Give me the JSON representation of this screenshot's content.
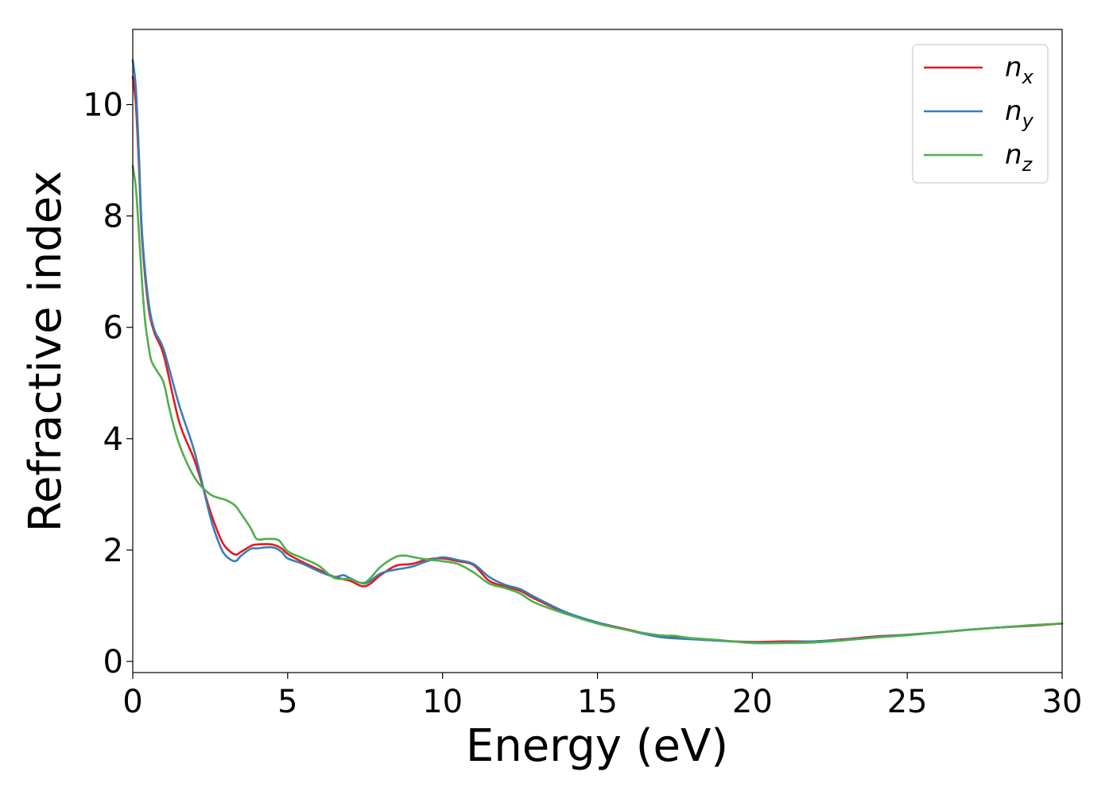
{
  "chart_data": {
    "type": "line",
    "title": "",
    "xlabel": "Energy (eV)",
    "ylabel": "Refractive index",
    "xlim": [
      0,
      30
    ],
    "ylim": [
      -0.2,
      11.35
    ],
    "xticks": [
      0,
      5,
      10,
      15,
      20,
      25,
      30
    ],
    "yticks": [
      0,
      2,
      4,
      6,
      8,
      10
    ],
    "grid": false,
    "legend_position": "top-right",
    "series": [
      {
        "name": "n",
        "subscript": "x",
        "color": "#e41a1c",
        "x": [
          0,
          0.1,
          0.2,
          0.3,
          0.5,
          0.7,
          1.0,
          1.5,
          2.0,
          2.5,
          2.8,
          3.0,
          3.3,
          3.5,
          3.8,
          4.0,
          4.5,
          4.8,
          5.0,
          5.5,
          6.0,
          6.5,
          7.0,
          7.5,
          8.0,
          8.5,
          9.0,
          9.5,
          10.0,
          10.5,
          11.0,
          11.5,
          12.0,
          12.5,
          13.0,
          14.0,
          15.0,
          16.0,
          17.0,
          18.0,
          19.0,
          20.0,
          21.0,
          22.0,
          23.0,
          24.0,
          25.0,
          26.0,
          27.0,
          28.0,
          29.0,
          30.0
        ],
        "y": [
          10.5,
          10.0,
          8.9,
          7.6,
          6.4,
          5.9,
          5.5,
          4.3,
          3.6,
          2.7,
          2.25,
          2.05,
          1.92,
          1.97,
          2.07,
          2.1,
          2.1,
          2.03,
          1.93,
          1.78,
          1.65,
          1.52,
          1.45,
          1.35,
          1.55,
          1.72,
          1.75,
          1.83,
          1.85,
          1.8,
          1.73,
          1.45,
          1.35,
          1.27,
          1.12,
          0.87,
          0.7,
          0.57,
          0.45,
          0.41,
          0.37,
          0.35,
          0.36,
          0.36,
          0.4,
          0.45,
          0.48,
          0.52,
          0.57,
          0.61,
          0.64,
          0.68
        ]
      },
      {
        "name": "n",
        "subscript": "y",
        "color": "#377eb8",
        "x": [
          0,
          0.1,
          0.2,
          0.3,
          0.5,
          0.7,
          1.0,
          1.5,
          2.0,
          2.5,
          2.8,
          3.0,
          3.3,
          3.5,
          3.8,
          4.0,
          4.5,
          4.8,
          5.0,
          5.5,
          6.0,
          6.5,
          6.8,
          7.0,
          7.5,
          8.0,
          8.5,
          9.0,
          9.5,
          10.0,
          10.5,
          11.0,
          11.5,
          12.0,
          12.5,
          13.0,
          14.0,
          15.0,
          16.0,
          17.0,
          18.0,
          19.0,
          20.0,
          21.0,
          22.0,
          23.0,
          24.0,
          25.0,
          26.0,
          27.0,
          28.0,
          29.0,
          30.0
        ],
        "y": [
          10.8,
          10.3,
          9.1,
          7.7,
          6.5,
          5.95,
          5.6,
          4.6,
          3.75,
          2.6,
          2.1,
          1.9,
          1.8,
          1.9,
          2.02,
          2.03,
          2.05,
          1.97,
          1.85,
          1.75,
          1.62,
          1.52,
          1.55,
          1.5,
          1.4,
          1.58,
          1.65,
          1.7,
          1.8,
          1.87,
          1.82,
          1.75,
          1.52,
          1.38,
          1.3,
          1.15,
          0.88,
          0.7,
          0.56,
          0.44,
          0.4,
          0.37,
          0.34,
          0.34,
          0.36,
          0.39,
          0.44,
          0.48,
          0.52,
          0.57,
          0.61,
          0.65,
          0.68
        ]
      },
      {
        "name": "n",
        "subscript": "z",
        "color": "#4daf4a",
        "x": [
          0,
          0.1,
          0.2,
          0.3,
          0.4,
          0.5,
          0.6,
          0.8,
          1.0,
          1.2,
          1.5,
          2.0,
          2.5,
          3.0,
          3.3,
          3.5,
          3.8,
          4.0,
          4.3,
          4.7,
          5.0,
          5.5,
          6.0,
          6.5,
          7.0,
          7.5,
          8.0,
          8.5,
          8.8,
          9.0,
          9.5,
          10.0,
          10.5,
          11.0,
          11.5,
          12.0,
          12.5,
          13.0,
          14.0,
          15.0,
          16.0,
          17.0,
          17.5,
          18.0,
          19.0,
          20.0,
          21.0,
          22.0,
          23.0,
          24.0,
          25.0,
          26.0,
          27.0,
          28.0,
          29.0,
          30.0
        ],
        "y": [
          8.9,
          8.5,
          7.7,
          6.8,
          6.1,
          5.7,
          5.4,
          5.2,
          5.0,
          4.5,
          3.9,
          3.3,
          3.0,
          2.9,
          2.8,
          2.65,
          2.4,
          2.2,
          2.2,
          2.18,
          1.98,
          1.85,
          1.72,
          1.5,
          1.48,
          1.42,
          1.7,
          1.88,
          1.9,
          1.88,
          1.83,
          1.8,
          1.75,
          1.6,
          1.4,
          1.32,
          1.22,
          1.05,
          0.85,
          0.68,
          0.56,
          0.47,
          0.46,
          0.42,
          0.38,
          0.33,
          0.33,
          0.34,
          0.38,
          0.43,
          0.47,
          0.52,
          0.57,
          0.61,
          0.65,
          0.68
        ]
      }
    ]
  }
}
